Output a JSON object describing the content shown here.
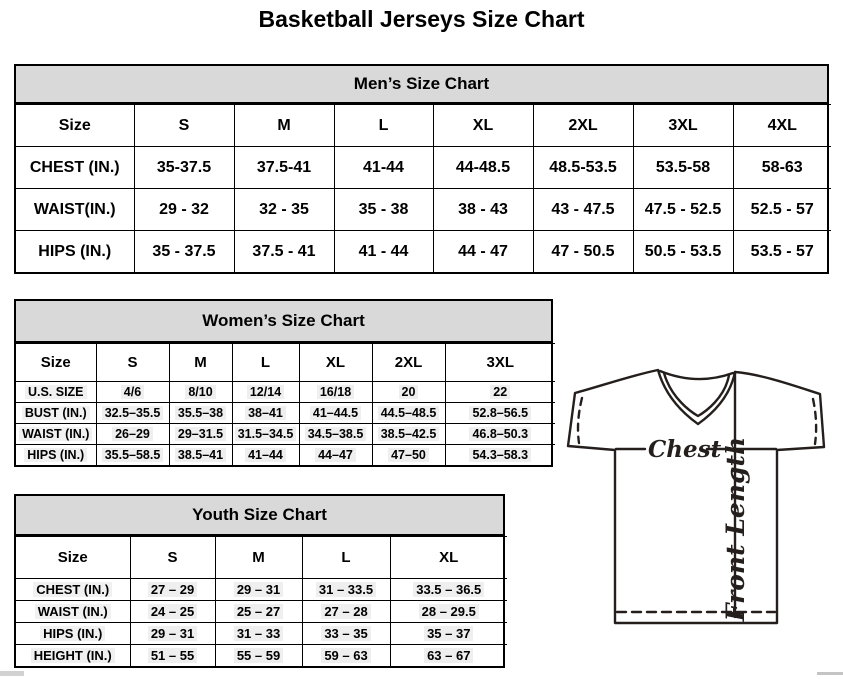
{
  "page_title": "Basketball Jerseys Size Chart",
  "tables": {
    "mens": {
      "title": "Men’s Size Chart",
      "header": [
        "Size",
        "S",
        "M",
        "L",
        "XL",
        "2XL",
        "3XL",
        "4XL"
      ],
      "rows": [
        [
          "CHEST (IN.)",
          "35-37.5",
          "37.5-41",
          "41-44",
          "44-48.5",
          "48.5-53.5",
          "53.5-58",
          "58-63"
        ],
        [
          "WAIST(IN.)",
          "29 - 32",
          "32 - 35",
          "35 - 38",
          "38 - 43",
          "43 - 47.5",
          "47.5 - 52.5",
          "52.5 - 57"
        ],
        [
          "HIPS (IN.)",
          "35 - 37.5",
          "37.5 - 41",
          "41 - 44",
          "44 - 47",
          "47 - 50.5",
          "50.5 - 53.5",
          "53.5 - 57"
        ]
      ]
    },
    "womens": {
      "title": "Women’s Size Chart",
      "header": [
        "Size",
        "S",
        "M",
        "L",
        "XL",
        "2XL",
        "3XL"
      ],
      "rows": [
        [
          "U.S. SIZE",
          "4/6",
          "8/10",
          "12/14",
          "16/18",
          "20",
          "22"
        ],
        [
          "BUST (IN.)",
          "32.5–35.5",
          "35.5–38",
          "38–41",
          "41–44.5",
          "44.5–48.5",
          "52.8–56.5"
        ],
        [
          "WAIST (IN.)",
          "26–29",
          "29–31.5",
          "31.5–34.5",
          "34.5–38.5",
          "38.5–42.5",
          "46.8–50.3"
        ],
        [
          "HIPS (IN.)",
          "35.5–58.5",
          "38.5–41",
          "41–44",
          "44–47",
          "47–50",
          "54.3–58.3"
        ]
      ]
    },
    "youth": {
      "title": "Youth Size Chart",
      "header": [
        "Size",
        "S",
        "M",
        "L",
        "XL"
      ],
      "rows": [
        [
          "CHEST (IN.)",
          "27 – 29",
          "29 – 31",
          "31 – 33.5",
          "33.5 – 36.5"
        ],
        [
          "WAIST (IN.)",
          "24 – 25",
          "25 – 27",
          "27 – 28",
          "28 – 29.5"
        ],
        [
          "HIPS (IN.)",
          "29 – 31",
          "31 – 33",
          "33 – 35",
          "35 – 37"
        ],
        [
          "HEIGHT (IN.)",
          "51 – 55",
          "55 – 59",
          "59 – 63",
          "63 – 67"
        ]
      ]
    }
  },
  "diagram": {
    "chest_label": "Chest",
    "front_length_label": "Front Length"
  },
  "colors": {
    "table_title_bg": "#d9d9d9",
    "table_border": "#000000",
    "diagram_line": "#241f1c",
    "scrollbar": "#c9c9c9"
  }
}
